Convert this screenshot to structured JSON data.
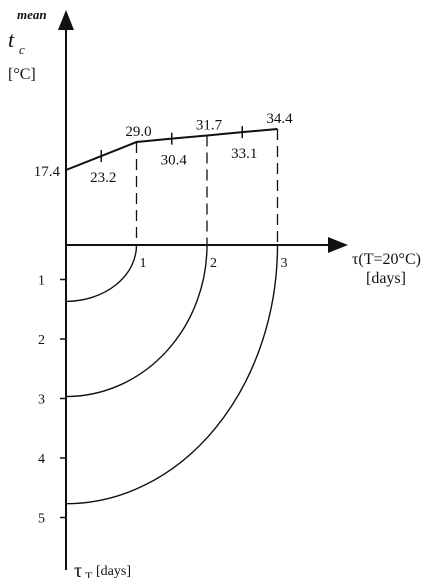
{
  "diagram": {
    "y_axis_label_top": {
      "symbol": "t",
      "subscript": "c",
      "superscript": "mean",
      "unit": "[°C]"
    },
    "x_axis_label": {
      "text": "τ(T=20°C)",
      "unit": "[days]"
    },
    "y_axis_label_bottom": {
      "symbol": "τ",
      "subscript": "T",
      "unit": "[days]"
    },
    "temperature_profile": [
      {
        "day": 0,
        "value": 17.4
      },
      {
        "day": 0.5,
        "value": 23.2
      },
      {
        "day": 1,
        "value": 29.0
      },
      {
        "day": 1.5,
        "value": 30.4
      },
      {
        "day": 2,
        "value": 31.7
      },
      {
        "day": 2.5,
        "value": 33.1
      },
      {
        "day": 3,
        "value": 34.4
      }
    ],
    "x_ticks": [
      "1",
      "2",
      "3"
    ],
    "y_ticks_bottom": [
      "1",
      "2",
      "3",
      "4",
      "5"
    ],
    "equivalent_age_curves": [
      {
        "x_day": 1,
        "tau_T": 1.2
      },
      {
        "x_day": 2,
        "tau_T": 2.8
      },
      {
        "x_day": 3,
        "tau_T": 4.6
      }
    ]
  }
}
